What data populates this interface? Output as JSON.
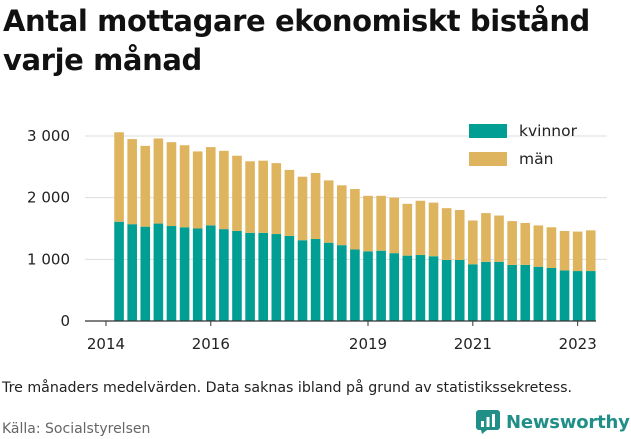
{
  "title": "Antal mottagare ekonomiskt bistånd varje månad",
  "note": "Tre månaders medelvärden. Data saknas ibland på grund av statistikssekretess.",
  "source": "Källa: Socialstyrelsen",
  "brand": {
    "name": "Newsworthy",
    "icon": "newsworthy-logo-icon",
    "color": "#1f8f87"
  },
  "colors": {
    "kvinnor": "#009e93",
    "man": "#dfb45e",
    "grid": "#dddddd",
    "axis": "#333333"
  },
  "chart_data": {
    "type": "bar",
    "stacked": true,
    "title": "Antal mottagare ekonomiskt bistånd varje månad",
    "xlabel": "",
    "ylabel": "",
    "ylim": [
      0,
      3000
    ],
    "xlim": [
      2013.6,
      2023.35
    ],
    "yticks": [
      0,
      1000,
      2000,
      3000
    ],
    "ytick_labels": [
      "0",
      "1 000",
      "2 000",
      "3 000"
    ],
    "xticks": [
      2014,
      2016,
      2019,
      2021,
      2023
    ],
    "xtick_labels": [
      "2014",
      "2016",
      "2019",
      "2021",
      "2023"
    ],
    "grid": true,
    "legend_position": "top-right",
    "x": [
      2014.25,
      2014.5,
      2014.75,
      2015.0,
      2015.25,
      2015.5,
      2015.75,
      2016.0,
      2016.25,
      2016.5,
      2016.75,
      2017.0,
      2017.25,
      2017.5,
      2017.75,
      2018.0,
      2018.25,
      2018.5,
      2018.75,
      2019.0,
      2019.25,
      2019.5,
      2019.75,
      2020.0,
      2020.25,
      2020.5,
      2020.75,
      2021.0,
      2021.25,
      2021.5,
      2021.75,
      2022.0,
      2022.25,
      2022.5,
      2022.75,
      2023.0,
      2023.25
    ],
    "series": [
      {
        "name": "kvinnor",
        "color": "#009e93",
        "values": [
          1610,
          1570,
          1530,
          1580,
          1540,
          1520,
          1500,
          1550,
          1490,
          1460,
          1430,
          1430,
          1410,
          1380,
          1310,
          1330,
          1270,
          1230,
          1160,
          1130,
          1140,
          1100,
          1060,
          1070,
          1050,
          990,
          990,
          920,
          960,
          960,
          910,
          910,
          880,
          860,
          820,
          810,
          810
        ]
      },
      {
        "name": "män",
        "color": "#dfb45e",
        "values": [
          1450,
          1380,
          1310,
          1380,
          1360,
          1330,
          1250,
          1270,
          1270,
          1220,
          1160,
          1170,
          1150,
          1070,
          1030,
          1070,
          1010,
          970,
          980,
          900,
          890,
          900,
          840,
          880,
          870,
          840,
          810,
          710,
          790,
          750,
          710,
          680,
          670,
          660,
          640,
          640,
          660
        ]
      }
    ]
  }
}
